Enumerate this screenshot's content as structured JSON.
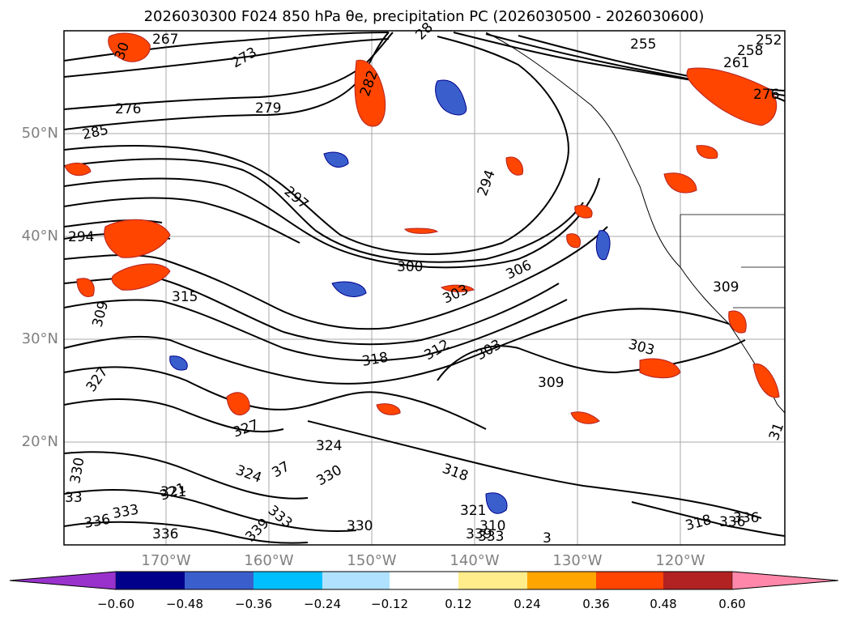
{
  "title": "2026030300 F024 850 hPa θe, precipitation PC (2026030500 - 2026030600)",
  "lat_labels": [
    "50°N",
    "40°N",
    "30°N",
    "20°N"
  ],
  "lon_labels": [
    "170°W",
    "160°W",
    "150°W",
    "140°W",
    "130°W",
    "120°W"
  ],
  "colorbar": {
    "ticks": [
      "−0.60",
      "−0.48",
      "−0.36",
      "−0.24",
      "−0.12",
      "0.12",
      "0.24",
      "0.36",
      "0.48",
      "0.60"
    ],
    "colors": [
      "#9932cc",
      "#00008b",
      "#3a5fcd",
      "#00bfff",
      "#b0e2ff",
      "#ffffff",
      "#ffec8b",
      "#ffa500",
      "#ff4500",
      "#b22222",
      "#ff88aa"
    ]
  },
  "contour_labels": [
    "267",
    "273",
    "276",
    "279",
    "285",
    "282",
    "28",
    "255",
    "252",
    "258",
    "261",
    "276",
    "294",
    "297",
    "294",
    "300",
    "306",
    "303",
    "309",
    "315",
    "309",
    "303",
    "318",
    "312",
    "303",
    "309",
    "327",
    "327",
    "324",
    "330",
    "324",
    "321",
    "37",
    "330",
    "333",
    "333",
    "336",
    "336",
    "339",
    "330",
    "318",
    "321",
    "333",
    "339",
    "310",
    "3",
    "318",
    "336",
    "336",
    "31",
    "33",
    "30",
    "321"
  ]
}
